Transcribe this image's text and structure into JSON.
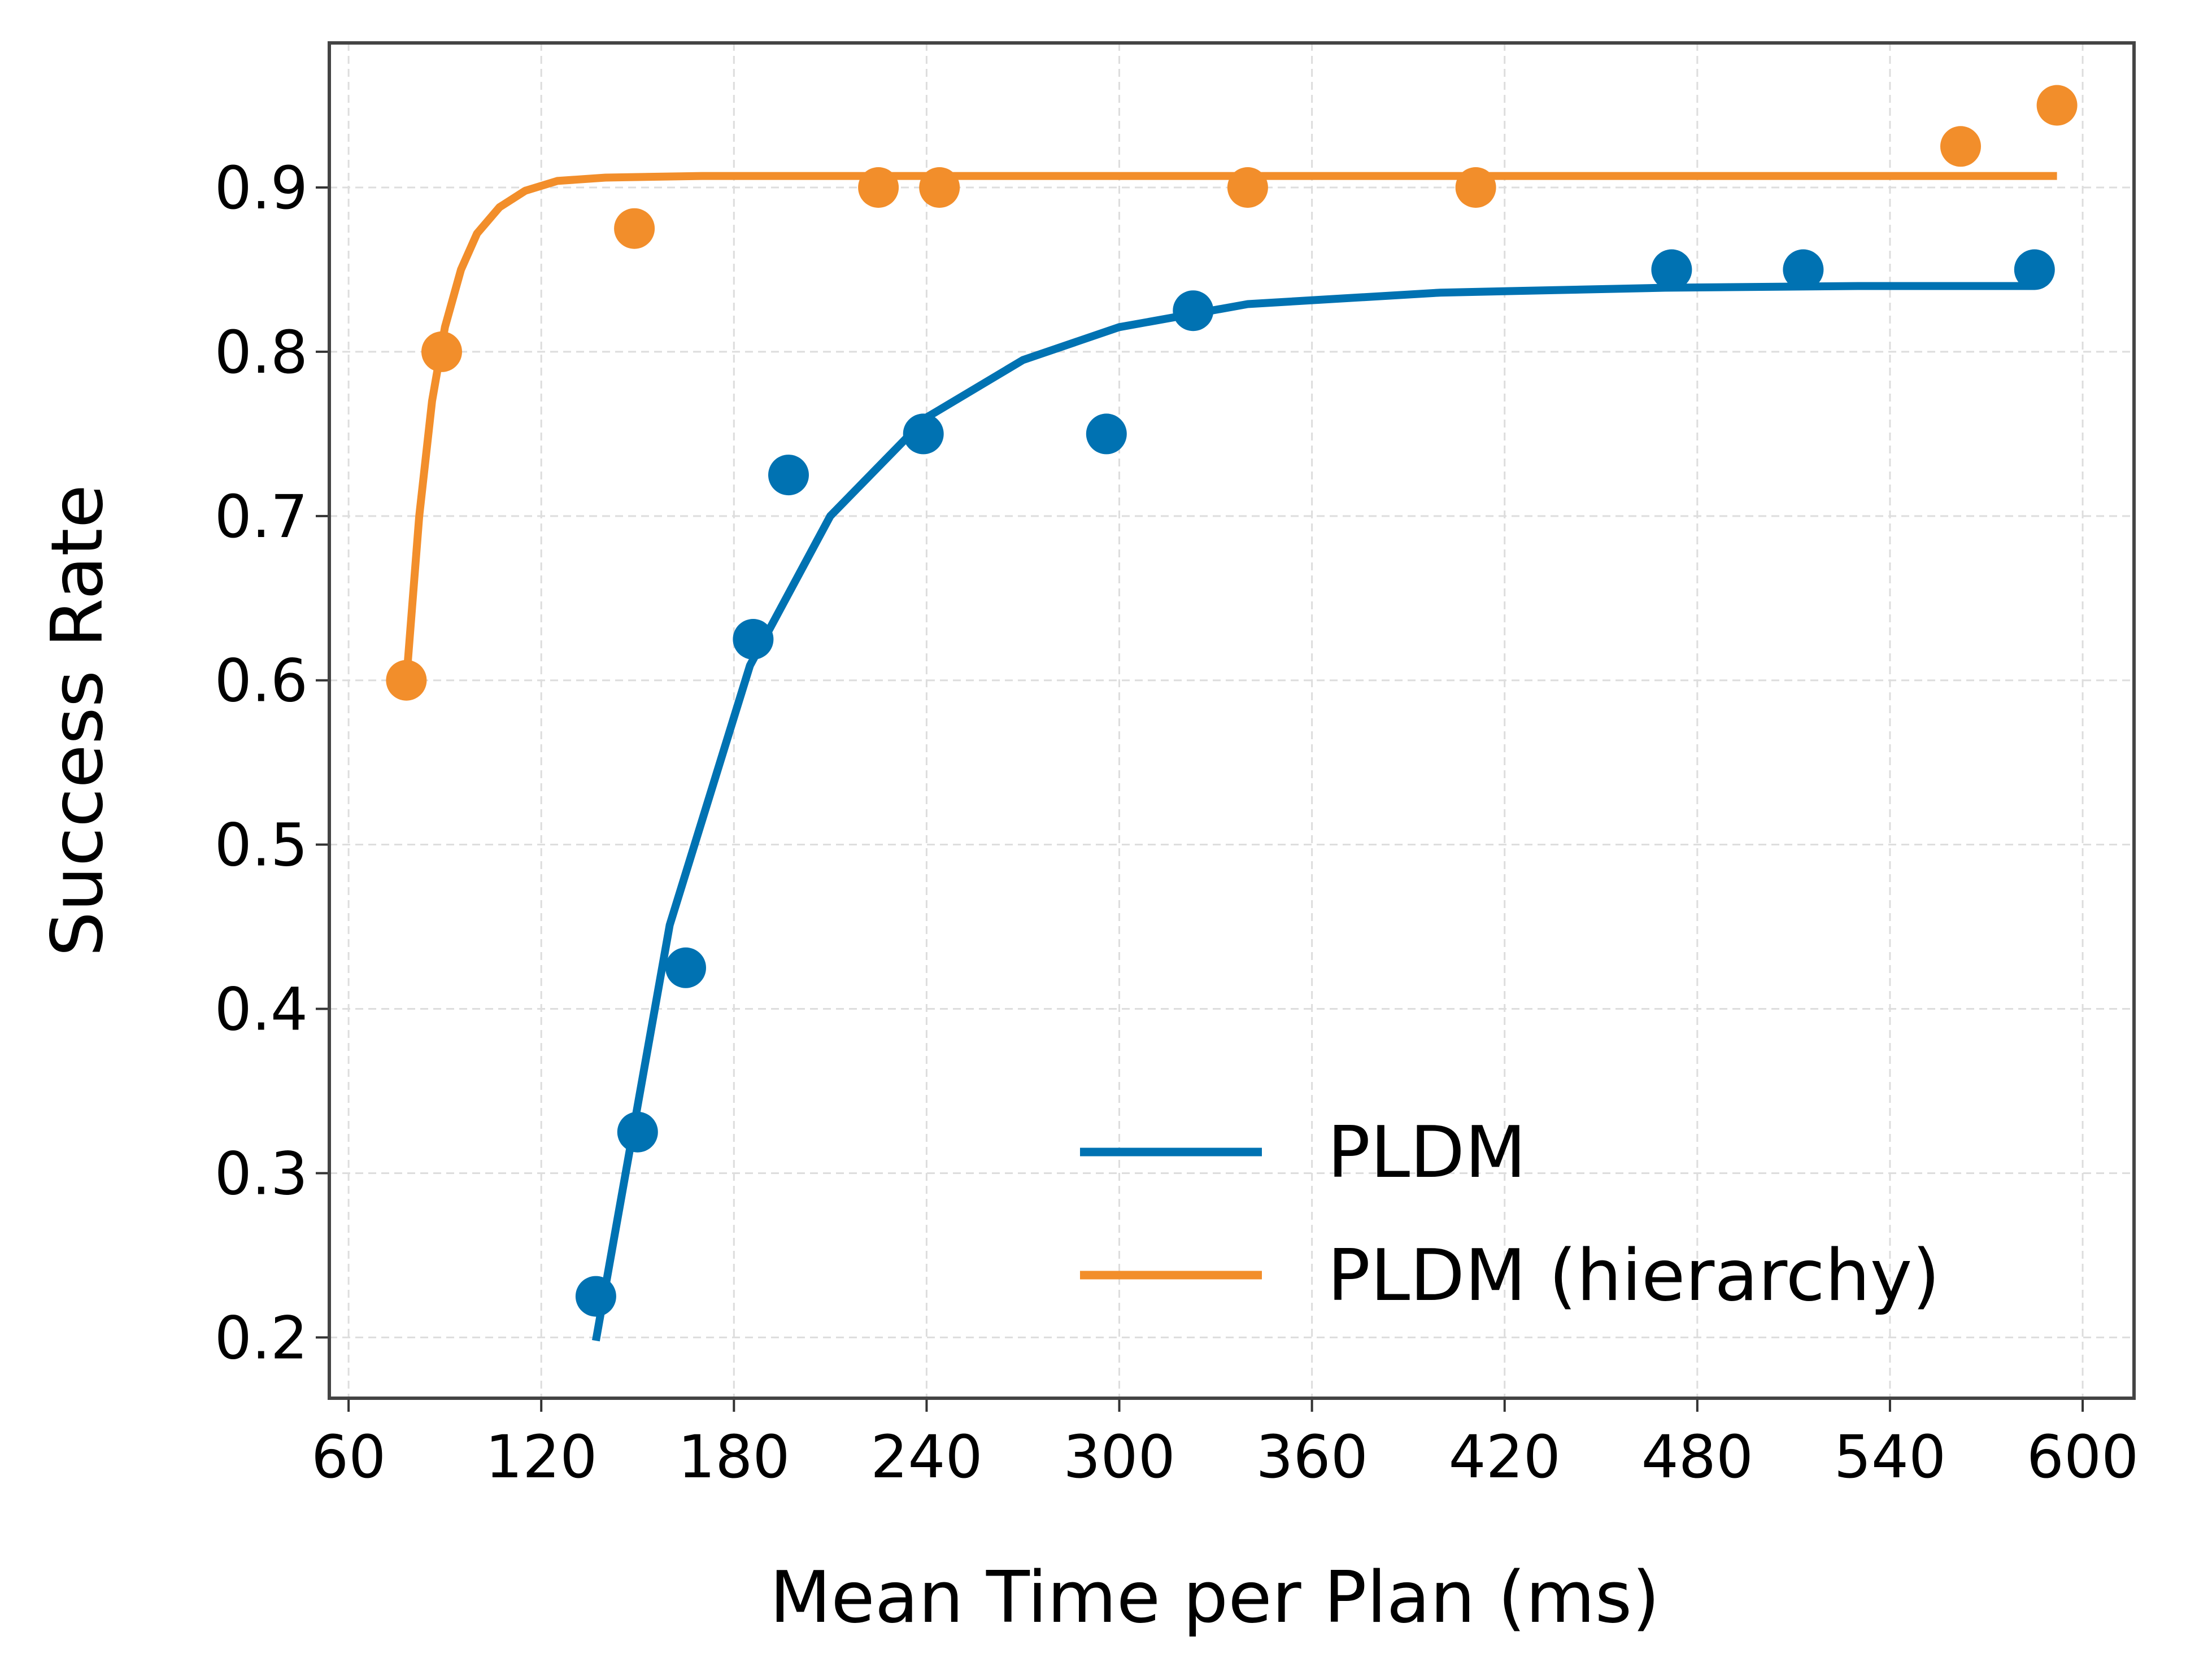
{
  "chart_data": {
    "type": "scatter",
    "title": "",
    "xlabel": "Mean Time per Plan (ms)",
    "ylabel": "Success Rate",
    "xlim": [
      54,
      616
    ],
    "ylim": [
      0.163,
      0.988
    ],
    "xticks": [
      60,
      120,
      180,
      240,
      300,
      360,
      420,
      480,
      540,
      600
    ],
    "yticks": [
      0.2,
      0.3,
      0.4,
      0.5,
      0.6,
      0.7,
      0.8,
      0.9
    ],
    "xtick_labels": [
      "60",
      "120",
      "180",
      "240",
      "300",
      "360",
      "420",
      "480",
      "540",
      "600"
    ],
    "ytick_labels": [
      "0.2",
      "0.3",
      "0.4",
      "0.5",
      "0.6",
      "0.7",
      "0.8",
      "0.9"
    ],
    "grid": true,
    "legend_position": "bottom-right",
    "series": [
      {
        "name": "PLDM",
        "color": "#0072b2",
        "points": [
          {
            "x": 137,
            "y": 0.225
          },
          {
            "x": 150,
            "y": 0.325
          },
          {
            "x": 165,
            "y": 0.425
          },
          {
            "x": 186,
            "y": 0.625
          },
          {
            "x": 197,
            "y": 0.725
          },
          {
            "x": 239,
            "y": 0.75
          },
          {
            "x": 296,
            "y": 0.75
          },
          {
            "x": 323,
            "y": 0.825
          },
          {
            "x": 472,
            "y": 0.85
          },
          {
            "x": 513,
            "y": 0.85
          },
          {
            "x": 585,
            "y": 0.85
          }
        ],
        "fit": {
          "model": "exponential saturation",
          "x_start": 137,
          "x_end": 585,
          "points": [
            {
              "x": 137,
              "y": 0.198
            },
            {
              "x": 160,
              "y": 0.451
            },
            {
              "x": 185,
              "y": 0.609
            },
            {
              "x": 210,
              "y": 0.7
            },
            {
              "x": 240,
              "y": 0.76
            },
            {
              "x": 270,
              "y": 0.795
            },
            {
              "x": 300,
              "y": 0.815
            },
            {
              "x": 340,
              "y": 0.829
            },
            {
              "x": 400,
              "y": 0.836
            },
            {
              "x": 470,
              "y": 0.839
            },
            {
              "x": 530,
              "y": 0.84
            },
            {
              "x": 585,
              "y": 0.84
            }
          ]
        }
      },
      {
        "name": "PLDM (hierarchy)",
        "color": "#f28e2b",
        "points": [
          {
            "x": 78,
            "y": 0.6
          },
          {
            "x": 89,
            "y": 0.8
          },
          {
            "x": 149,
            "y": 0.875
          },
          {
            "x": 225,
            "y": 0.9
          },
          {
            "x": 244,
            "y": 0.9
          },
          {
            "x": 340,
            "y": 0.9
          },
          {
            "x": 411,
            "y": 0.9
          },
          {
            "x": 562,
            "y": 0.925
          },
          {
            "x": 592,
            "y": 0.95
          }
        ],
        "fit": {
          "model": "exponential saturation",
          "x_start": 78,
          "x_end": 592,
          "points": [
            {
              "x": 78,
              "y": 0.6
            },
            {
              "x": 82,
              "y": 0.7
            },
            {
              "x": 86,
              "y": 0.77
            },
            {
              "x": 90,
              "y": 0.815
            },
            {
              "x": 95,
              "y": 0.85
            },
            {
              "x": 100,
              "y": 0.872
            },
            {
              "x": 107,
              "y": 0.888
            },
            {
              "x": 115,
              "y": 0.898
            },
            {
              "x": 125,
              "y": 0.904
            },
            {
              "x": 140,
              "y": 0.906
            },
            {
              "x": 170,
              "y": 0.907
            },
            {
              "x": 250,
              "y": 0.907
            },
            {
              "x": 400,
              "y": 0.907
            },
            {
              "x": 592,
              "y": 0.907
            }
          ]
        }
      }
    ]
  }
}
